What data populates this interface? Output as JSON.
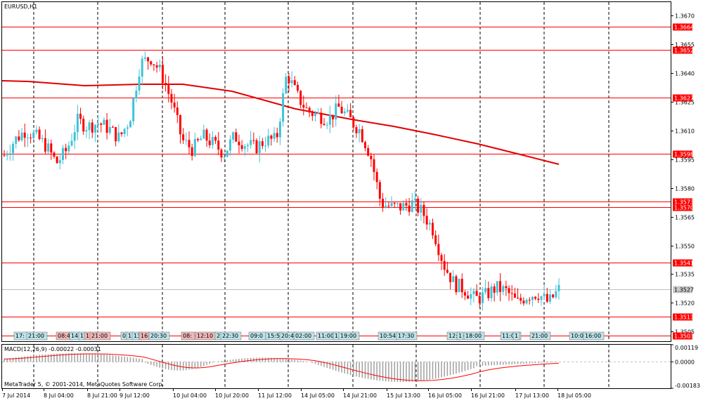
{
  "window": {
    "symbol_title": "EURUSD,H1",
    "copyright": "MetaTrader 5, © 2001-2014, MetaQuotes Software Corp."
  },
  "colors": {
    "background": "#ffffff",
    "bull": "#3fc3d8",
    "bear": "#ff0000",
    "level_line": "#ff0000",
    "ma_line": "#e00000",
    "macd_hist": "#a0a0a0",
    "macd_signal": "#ff0000",
    "current_price_bg": "#c8c8c8",
    "tag_blue": "#bde3ea",
    "tag_red": "#f0b8b8"
  },
  "price_axis": {
    "min": 1.35,
    "max": 1.3677,
    "ticks": [
      "1.3670",
      "1.3655",
      "1.3640",
      "1.3625",
      "1.3610",
      "1.3595",
      "1.3580",
      "1.3565",
      "1.3550",
      "1.3535",
      "1.3520",
      "1.3505"
    ]
  },
  "levels": [
    {
      "value": 1.3664,
      "label": "1.3664"
    },
    {
      "value": 1.3652,
      "label": "1.3652"
    },
    {
      "value": 1.3627,
      "label": "1.3627"
    },
    {
      "value": 1.3598,
      "label": "1.3598"
    },
    {
      "value": 1.3573,
      "label": "1.3573"
    },
    {
      "value": 1.357,
      "label": "1.3570"
    },
    {
      "value": 1.3541,
      "label": "1.3541"
    },
    {
      "value": 1.3513,
      "label": "1.3513"
    },
    {
      "value": 1.3503,
      "label": "1.3503"
    }
  ],
  "current_price": {
    "value": 1.3527,
    "label": "1.3527"
  },
  "time_axis": [
    "7 Jul 2014",
    "8 Jul 04:00",
    "8 Jul 21:00",
    "9 Jul 12:00",
    "10 Jul 04:00",
    "10 Jul 20:00",
    "11 Jul 12:00",
    "14 Jul 05:00",
    "14 Jul 21:00",
    "15 Jul 13:00",
    "16 Jul 05:00",
    "16 Jul 21:00",
    "17 Jul 13:00",
    "18 Jul 05:00"
  ],
  "period_separators_note": "dashed vertical day separators",
  "event_tags": [
    {
      "label": "17:",
      "color": "blue"
    },
    {
      "label": "21:00",
      "color": "blue"
    },
    {
      "label": "08:4",
      "color": "red"
    },
    {
      "label": "14",
      "color": "blue"
    },
    {
      "label": "1",
      "color": "blue"
    },
    {
      "label": "1",
      "color": "red"
    },
    {
      "label": "21:00",
      "color": "red"
    },
    {
      "label": "0",
      "color": "blue"
    },
    {
      "label": "1",
      "color": "blue"
    },
    {
      "label": "13",
      "color": "blue"
    },
    {
      "label": "16",
      "color": "red"
    },
    {
      "label": "20:30",
      "color": "blue"
    },
    {
      "label": "08:",
      "color": "red"
    },
    {
      "label": "12:10",
      "color": "red"
    },
    {
      "label": "2",
      "color": "blue"
    },
    {
      "label": "22:30",
      "color": "blue"
    },
    {
      "label": "09:0",
      "color": "blue"
    },
    {
      "label": "15:5",
      "color": "blue"
    },
    {
      "label": "20:4",
      "color": "blue"
    },
    {
      "label": "02:00",
      "color": "blue"
    },
    {
      "label": "11:00",
      "color": "blue"
    },
    {
      "label": "1",
      "color": "blue"
    },
    {
      "label": "19:00",
      "color": "blue"
    },
    {
      "label": "10:54",
      "color": "blue"
    },
    {
      "label": "17:30",
      "color": "blue"
    },
    {
      "label": "12:",
      "color": "blue"
    },
    {
      "label": "1",
      "color": "blue"
    },
    {
      "label": "18:00",
      "color": "blue"
    },
    {
      "label": "11:00",
      "color": "blue"
    },
    {
      "label": "1",
      "color": "blue"
    },
    {
      "label": "21:00",
      "color": "blue"
    },
    {
      "label": "10:0",
      "color": "blue"
    },
    {
      "label": "16:00",
      "color": "blue"
    }
  ],
  "macd": {
    "title": "MACD(12,26,9) -0.00022 -0.00031",
    "ticks": [
      "0.00119",
      "0.0000",
      "-0.00183"
    ],
    "max": 0.00119,
    "min": -0.00183
  },
  "chart_data": {
    "type": "candlestick",
    "symbol": "EURUSD",
    "timeframe": "H1",
    "moving_average": [
      {
        "t": "7 Jul 2014",
        "v": 1.3636
      },
      {
        "t": "8 Jul 21:00",
        "v": 1.3632
      },
      {
        "t": "10 Jul 04:00",
        "v": 1.3632
      },
      {
        "t": "10 Jul 20:00",
        "v": 1.3627
      },
      {
        "t": "14 Jul 05:00",
        "v": 1.3615
      },
      {
        "t": "15 Jul 13:00",
        "v": 1.3607
      },
      {
        "t": "16 Jul 05:00",
        "v": 1.3602
      },
      {
        "t": "16 Jul 21:00",
        "v": 1.3598
      },
      {
        "t": "17 Jul 13:00",
        "v": 1.3591
      }
    ],
    "close_path": [
      1.3597,
      1.3605,
      1.361,
      1.3607,
      1.3602,
      1.3593,
      1.36,
      1.3615,
      1.3612,
      1.3614,
      1.3611,
      1.3606,
      1.3616,
      1.3645,
      1.3648,
      1.364,
      1.3625,
      1.3605,
      1.36,
      1.3607,
      1.3603,
      1.3598,
      1.3607,
      1.3603,
      1.3601,
      1.3605,
      1.3605,
      1.364,
      1.3628,
      1.362,
      1.3618,
      1.3616,
      1.3622,
      1.3616,
      1.361,
      1.3597,
      1.3572,
      1.357,
      1.357,
      1.3572,
      1.3567,
      1.3558,
      1.354,
      1.353,
      1.3527,
      1.3522,
      1.3524,
      1.3528,
      1.3526,
      1.352,
      1.3524,
      1.3525,
      1.352,
      1.3527
    ]
  }
}
